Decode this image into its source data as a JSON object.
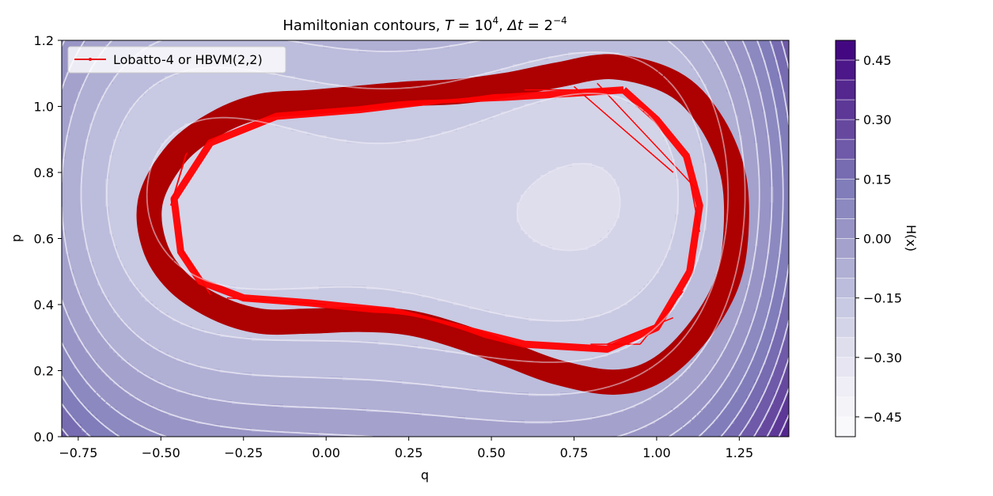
{
  "chart_data": {
    "type": "contour",
    "title": {
      "prefix": "Hamiltonian contours, ",
      "T_sym": "T",
      "eq1": " = 10",
      "T_exp": "4",
      "sep": ", ",
      "dt_sym": "Δt",
      "eq2": " = 2",
      "dt_exp": "−4"
    },
    "xlabel": "q",
    "ylabel": "p",
    "xlim": [
      -0.8,
      1.4
    ],
    "ylim": [
      0.0,
      1.2
    ],
    "x_ticks": [
      -0.75,
      -0.5,
      -0.25,
      0.0,
      0.25,
      0.5,
      0.75,
      1.0,
      1.25
    ],
    "x_tick_labels": [
      "−0.75",
      "−0.50",
      "−0.25",
      "0.00",
      "0.25",
      "0.50",
      "0.75",
      "1.00",
      "1.25"
    ],
    "y_ticks": [
      0.0,
      0.2,
      0.4,
      0.6,
      0.8,
      1.0,
      1.2
    ],
    "y_tick_labels": [
      "0.0",
      "0.2",
      "0.4",
      "0.6",
      "0.8",
      "1.0",
      "1.2"
    ],
    "legend": {
      "label": "Lobatto-4 or HBVM(2,2)",
      "placement": "upper-left",
      "color": "#e8141a"
    },
    "colorbar": {
      "label": "H(x)",
      "range": [
        -0.5,
        0.5
      ],
      "levels": 20,
      "tick_values": [
        -0.45,
        -0.3,
        -0.15,
        0.0,
        0.15,
        0.3,
        0.45
      ],
      "tick_labels": [
        "−0.45",
        "−0.30",
        "−0.15",
        "0.00",
        "0.15",
        "0.30",
        "0.45"
      ],
      "colormap": "Purples"
    },
    "background_contour_style": "dashed",
    "trajectory_band": {
      "center": [
        [
          0.87,
          1.12
        ],
        [
          0.7,
          1.095
        ],
        [
          0.55,
          1.065
        ],
        [
          0.4,
          1.045
        ],
        [
          0.25,
          1.038
        ],
        [
          0.1,
          1.025
        ],
        [
          -0.05,
          1.012
        ],
        [
          -0.2,
          1.0
        ],
        [
          -0.33,
          0.95
        ],
        [
          -0.45,
          0.86
        ],
        [
          -0.53,
          0.72
        ],
        [
          -0.52,
          0.58
        ],
        [
          -0.45,
          0.47
        ],
        [
          -0.33,
          0.39
        ],
        [
          -0.2,
          0.35
        ],
        [
          -0.05,
          0.35
        ],
        [
          0.1,
          0.355
        ],
        [
          0.25,
          0.345
        ],
        [
          0.4,
          0.305
        ],
        [
          0.55,
          0.25
        ],
        [
          0.7,
          0.195
        ],
        [
          0.87,
          0.165
        ],
        [
          1.0,
          0.2
        ],
        [
          1.12,
          0.31
        ],
        [
          1.21,
          0.46
        ],
        [
          1.24,
          0.62
        ],
        [
          1.23,
          0.8
        ],
        [
          1.16,
          0.96
        ],
        [
          1.05,
          1.07
        ]
      ],
      "half_width_q": 0.055,
      "half_width_p": 0.038,
      "outer_color": "#ad0000",
      "inner_color": "#ff0000"
    },
    "trajectory_inner_edge": [
      [
        0.9,
        1.05
      ],
      [
        0.75,
        1.04
      ],
      [
        0.55,
        1.028
      ],
      [
        0.35,
        1.02
      ],
      [
        0.1,
        0.99
      ],
      [
        -0.15,
        0.97
      ],
      [
        -0.35,
        0.89
      ],
      [
        -0.46,
        0.72
      ],
      [
        -0.44,
        0.56
      ],
      [
        -0.38,
        0.47
      ],
      [
        -0.25,
        0.42
      ],
      [
        -0.05,
        0.405
      ],
      [
        0.2,
        0.38
      ],
      [
        0.4,
        0.33
      ],
      [
        0.6,
        0.28
      ],
      [
        0.85,
        0.265
      ],
      [
        1.0,
        0.33
      ],
      [
        1.1,
        0.5
      ],
      [
        1.13,
        0.7
      ],
      [
        1.09,
        0.85
      ],
      [
        1.0,
        0.96
      ],
      [
        0.9,
        1.05
      ]
    ],
    "trajectory_chords": [
      [
        [
          -0.42,
          0.87
        ],
        [
          -0.47,
          0.7
        ]
      ],
      [
        [
          -0.44,
          0.57
        ],
        [
          -0.35,
          0.43
        ]
      ],
      [
        [
          -0.3,
          0.42
        ],
        [
          0.0,
          0.4
        ]
      ],
      [
        [
          0.8,
          0.28
        ],
        [
          0.95,
          0.28
        ]
      ],
      [
        [
          0.95,
          0.28
        ],
        [
          1.08,
          0.44
        ]
      ],
      [
        [
          1.1,
          0.78
        ],
        [
          1.13,
          0.62
        ]
      ],
      [
        [
          0.75,
          1.06
        ],
        [
          1.05,
          0.8
        ]
      ],
      [
        [
          0.82,
          1.07
        ],
        [
          1.12,
          0.75
        ]
      ],
      [
        [
          0.6,
          1.05
        ],
        [
          0.88,
          1.05
        ]
      ],
      [
        [
          -0.4,
          0.93
        ],
        [
          -0.47,
          0.7
        ]
      ],
      [
        [
          0.85,
          0.28
        ],
        [
          1.05,
          0.36
        ]
      ]
    ]
  }
}
